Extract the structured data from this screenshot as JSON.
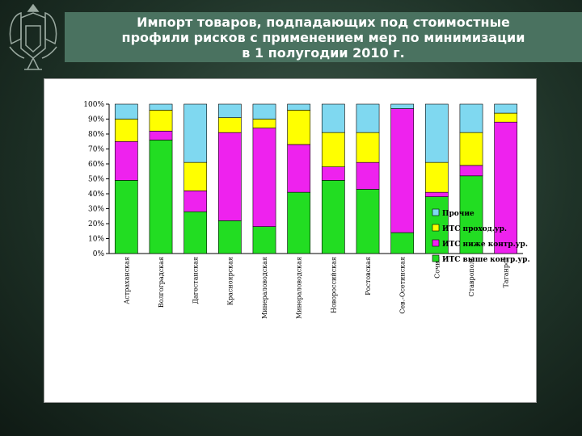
{
  "title": "Импорт товаров, подпадающих под стоимостные\nпрофили рисков с применением мер по минимизации\nв 1 полугодии 2010 г.",
  "colors": {
    "band": "#4a7260",
    "series": [
      "#22dd22",
      "#ee22ee",
      "#ffff00",
      "#7fd8f0"
    ]
  },
  "chart_data": {
    "type": "bar",
    "stacked": true,
    "percent": true,
    "categories": [
      "Астраханская",
      "Волгоградская",
      "Дагестанская",
      "Красноярская",
      "Минераловодская",
      "Минераловодская",
      "Новороссийская",
      "Ростовская",
      "Сев.-Осетинская",
      "Сочин",
      "Ставрополь",
      "Таганрог"
    ],
    "series": [
      {
        "name": "ИТС выше контр.ур.",
        "values": [
          49,
          76,
          28,
          22,
          18,
          41,
          49,
          43,
          14,
          38,
          52,
          0
        ]
      },
      {
        "name": "ИТС ниже контр.ур.",
        "values": [
          26,
          6,
          14,
          59,
          66,
          32,
          9,
          18,
          83,
          3,
          7,
          88
        ]
      },
      {
        "name": "ИТС проход.ур.",
        "values": [
          15,
          14,
          19,
          10,
          6,
          23,
          23,
          20,
          0,
          20,
          22,
          6
        ]
      },
      {
        "name": "Прочие",
        "values": [
          10,
          4,
          39,
          9,
          10,
          4,
          19,
          19,
          3,
          39,
          19,
          6
        ]
      }
    ],
    "ylim": [
      0,
      100
    ],
    "yticks": [
      "0%",
      "10%",
      "20%",
      "30%",
      "40%",
      "50%",
      "60%",
      "70%",
      "80%",
      "90%",
      "100%"
    ],
    "legend_position": "right",
    "grid": false
  }
}
